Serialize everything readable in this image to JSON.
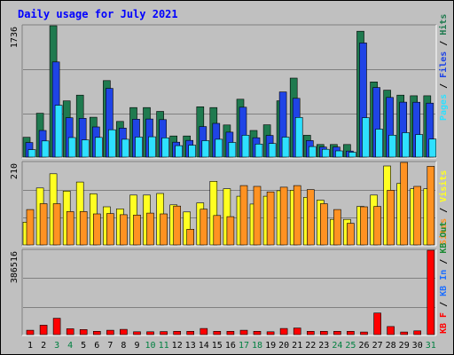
{
  "title": "Daily usage for July 2021",
  "colors": {
    "hits": "#1f7a4f",
    "files": "#1f44e6",
    "pages": "#2ee0ff",
    "visits": "#ffff22",
    "sites": "#ff9222",
    "kbin": "#1d6fff",
    "kbout": "#1d8a34",
    "kbf": "#ff0000",
    "panel_bg": "#c0c0c0",
    "plot_bg": "#c0c0c0",
    "weekday_label": "#000000",
    "weekend_label": "#008040"
  },
  "chart_data": [
    {
      "type": "bar",
      "name": "hits-files-pages",
      "y_max_label": "1736",
      "ylim": [
        0,
        1736
      ],
      "legend": [
        {
          "key": "pages",
          "label": "Pages"
        },
        {
          "key": "files",
          "label": "Files"
        },
        {
          "key": "hits",
          "label": "Hits"
        }
      ],
      "x": [
        1,
        2,
        3,
        4,
        5,
        6,
        7,
        8,
        9,
        10,
        11,
        12,
        13,
        14,
        15,
        16,
        17,
        18,
        19,
        20,
        21,
        22,
        23,
        24,
        25,
        26,
        27,
        28,
        29,
        30,
        31
      ],
      "series": [
        {
          "name": "Hits",
          "key": "hits",
          "values": [
            262,
            579,
            1736,
            743,
            819,
            527,
            1011,
            472,
            655,
            655,
            604,
            279,
            279,
            665,
            655,
            425,
            765,
            352,
            427,
            744,
            1044,
            288,
            166,
            166,
            166,
            1663,
            994,
            884,
            819,
            811,
            811
          ]
        },
        {
          "name": "Files",
          "key": "files",
          "values": [
            192,
            352,
            1257,
            520,
            513,
            399,
            908,
            383,
            501,
            503,
            495,
            197,
            221,
            403,
            446,
            330,
            659,
            256,
            286,
            861,
            777,
            218,
            133,
            133,
            80,
            1508,
            920,
            788,
            726,
            725,
            713
          ]
        },
        {
          "name": "Pages",
          "key": "pages",
          "values": [
            98,
            214,
            685,
            258,
            227,
            260,
            361,
            236,
            265,
            269,
            255,
            151,
            157,
            217,
            236,
            194,
            288,
            172,
            179,
            264,
            524,
            140,
            103,
            82,
            64,
            521,
            370,
            290,
            322,
            298,
            238
          ]
        }
      ]
    },
    {
      "type": "bar",
      "name": "visits-sites",
      "y_max_label": "210",
      "ylim": [
        0,
        210
      ],
      "legend": [
        {
          "key": "sites",
          "label": "Sites"
        },
        {
          "key": "visits",
          "label": "Visits"
        }
      ],
      "x": [
        1,
        2,
        3,
        4,
        5,
        6,
        7,
        8,
        9,
        10,
        11,
        12,
        13,
        14,
        15,
        16,
        17,
        18,
        19,
        20,
        21,
        22,
        23,
        24,
        25,
        26,
        27,
        28,
        29,
        30,
        31
      ],
      "series": [
        {
          "name": "Visits",
          "key": "visits",
          "values": [
            58,
            145,
            181,
            137,
            160,
            130,
            97,
            92,
            127,
            127,
            131,
            102,
            84,
            107,
            162,
            143,
            124,
            104,
            124,
            138,
            139,
            121,
            114,
            65,
            65,
            98,
            127,
            201,
            157,
            143,
            143
          ]
        },
        {
          "name": "Sites",
          "key": "sites",
          "values": [
            90,
            105,
            105,
            85,
            85,
            79,
            80,
            77,
            76,
            81,
            79,
            99,
            40,
            91,
            75,
            72,
            151,
            149,
            135,
            147,
            151,
            141,
            105,
            90,
            55,
            97,
            98,
            139,
            210,
            149,
            200
          ]
        }
      ]
    },
    {
      "type": "bar",
      "name": "kbytes",
      "y_max_label": "386516",
      "ylim": [
        0,
        386516
      ],
      "legend": [
        {
          "key": "kbf",
          "label": "KB F"
        },
        {
          "key": "kbin",
          "label": "KB In"
        },
        {
          "key": "kbout",
          "label": "KB Out"
        }
      ],
      "x": [
        1,
        2,
        3,
        4,
        5,
        6,
        7,
        8,
        9,
        10,
        11,
        12,
        13,
        14,
        15,
        16,
        17,
        18,
        19,
        20,
        21,
        22,
        23,
        24,
        25,
        26,
        27,
        28,
        29,
        30,
        31
      ],
      "series": [
        {
          "name": "KB F",
          "key": "kbf",
          "values": [
            20000,
            43000,
            75000,
            27000,
            23000,
            15000,
            20000,
            24000,
            13000,
            13000,
            14000,
            15000,
            15000,
            28000,
            15000,
            15000,
            20000,
            15000,
            13000,
            28000,
            30000,
            15000,
            15000,
            15000,
            15000,
            12000,
            99000,
            37000,
            12000,
            17000,
            386516
          ]
        }
      ]
    }
  ],
  "day_labels": [
    "1",
    "2",
    "3",
    "4",
    "5",
    "6",
    "7",
    "8",
    "9",
    "10",
    "11",
    "12",
    "13",
    "14",
    "15",
    "16",
    "17",
    "18",
    "19",
    "20",
    "21",
    "22",
    "23",
    "24",
    "25",
    "26",
    "27",
    "28",
    "29",
    "30",
    "31"
  ],
  "weekend_days": [
    3,
    4,
    10,
    11,
    17,
    18,
    24,
    25,
    31
  ]
}
